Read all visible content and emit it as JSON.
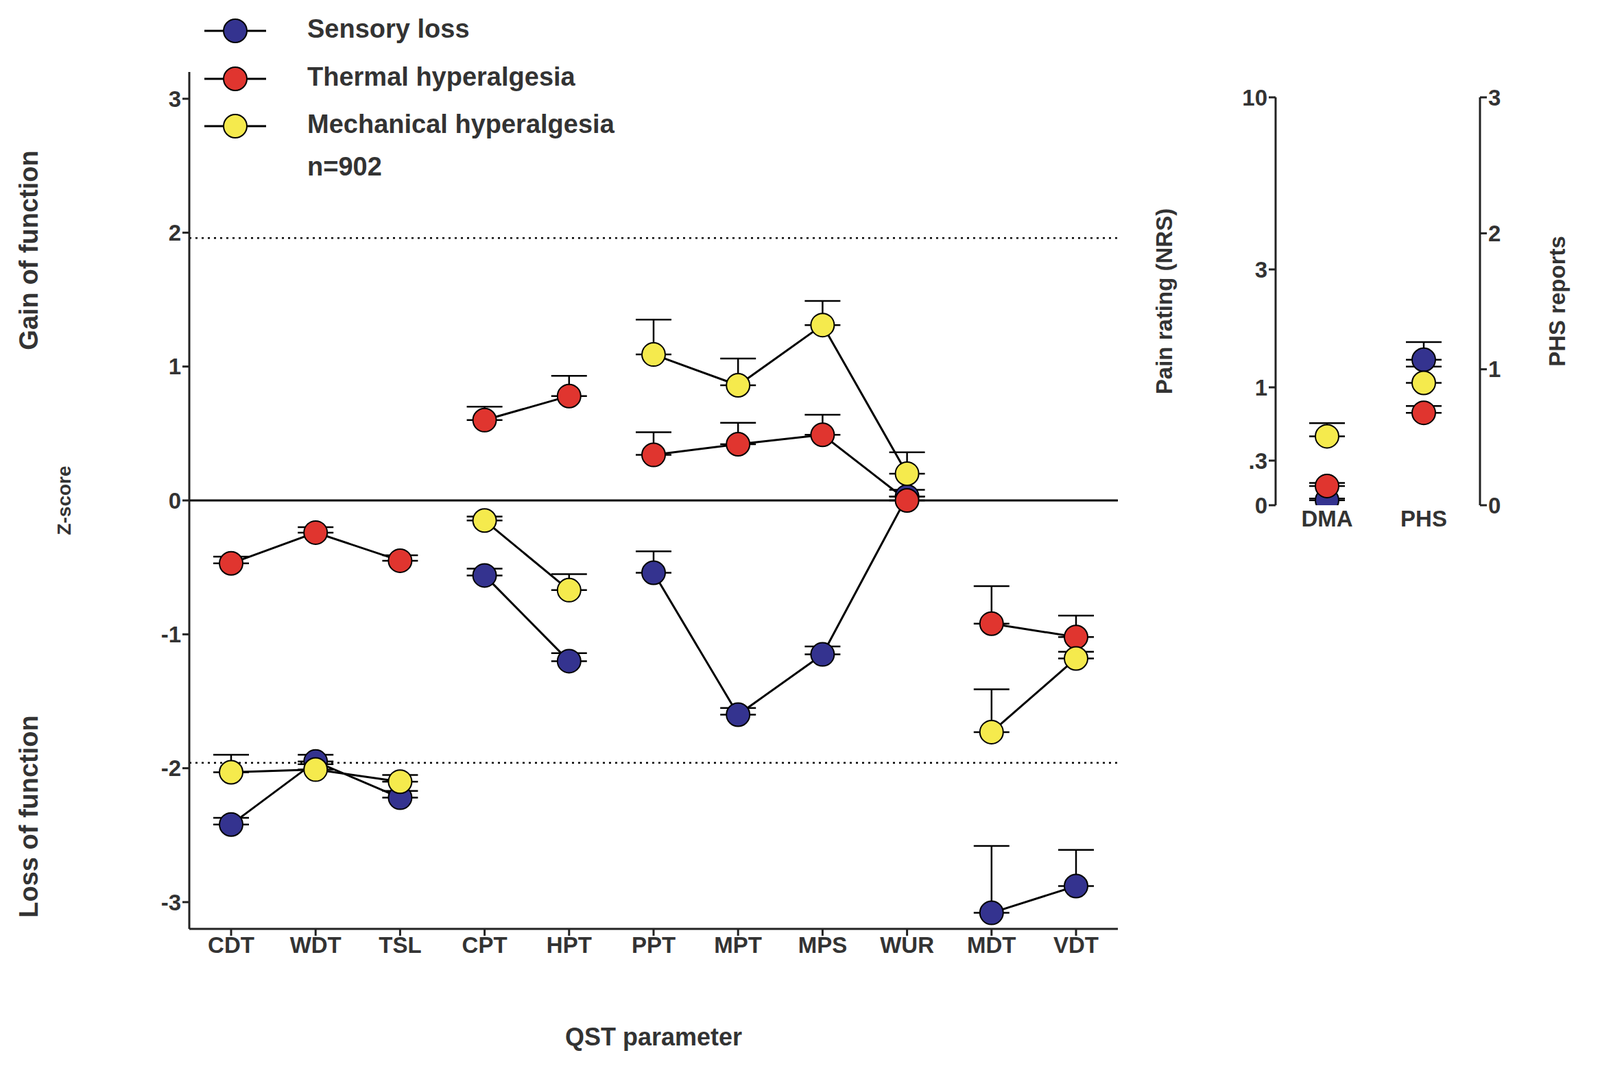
{
  "chart_data": [
    {
      "type": "line",
      "x_label": "QST parameter",
      "y_label": "Z-score",
      "categories": [
        "CDT",
        "WDT",
        "TSL",
        "CPT",
        "HPT",
        "PPT",
        "MPT",
        "MPS",
        "WUR",
        "MDT",
        "VDT"
      ],
      "category_groups": [
        [
          "CDT",
          "WDT",
          "TSL"
        ],
        [
          "CPT",
          "HPT"
        ],
        [
          "PPT",
          "MPT",
          "MPS",
          "WUR"
        ],
        [
          "MDT",
          "VDT"
        ]
      ],
      "ylim": [
        -3.2,
        3.2
      ],
      "yticks": [
        -3,
        -2,
        -1,
        0,
        1,
        2,
        3
      ],
      "reference_lines": [
        {
          "y": 1.96,
          "line_style": "dotted"
        },
        {
          "y": 0,
          "line_style": "solid"
        },
        {
          "y": -1.96,
          "line_style": "dotted"
        }
      ],
      "legend": "top-left",
      "marker": "circle",
      "annotations": [
        "Gain of function",
        "Loss of function",
        "n=902"
      ],
      "series": [
        {
          "name": "Sensory loss",
          "color": "#34338f",
          "values": [
            -2.42,
            -1.95,
            -2.22,
            -0.56,
            -1.2,
            -0.54,
            -1.6,
            -1.15,
            0.03,
            -3.08,
            -2.88
          ],
          "errors": [
            0.05,
            0.05,
            0.05,
            0.05,
            0.06,
            0.16,
            0.05,
            0.06,
            0.05,
            0.5,
            0.27
          ]
        },
        {
          "name": "Thermal hyperalgesia",
          "color": "#e0352f",
          "values": [
            -0.47,
            -0.24,
            -0.45,
            0.6,
            0.78,
            0.34,
            0.42,
            0.49,
            0.0,
            -0.92,
            -1.02
          ],
          "errors": [
            0.05,
            0.04,
            0.04,
            0.1,
            0.15,
            0.17,
            0.16,
            0.15,
            0.03,
            0.28,
            0.16
          ]
        },
        {
          "name": "Mechanical hyperalgesia",
          "color": "#f5ea4d",
          "values": [
            -2.03,
            -2.01,
            -2.1,
            -0.15,
            -0.67,
            1.09,
            0.86,
            1.31,
            0.2,
            -1.73,
            -1.18
          ],
          "errors": [
            0.13,
            0.04,
            0.05,
            0.03,
            0.12,
            0.26,
            0.2,
            0.18,
            0.16,
            0.32,
            0.05
          ]
        }
      ]
    },
    {
      "type": "scatter",
      "y_label": "Pain rating (NRS)",
      "y2_label": "PHS reports",
      "categories": [
        "DMA",
        "PHS"
      ],
      "log": "y",
      "marker": "circle",
      "ylim": [
        0,
        10
      ],
      "yticks": [
        0,
        {
          "value": 0.3,
          "label": ".3"
        },
        1,
        3,
        10
      ],
      "y2lim": [
        0,
        3
      ],
      "y2ticks": [
        0,
        1,
        2,
        3
      ],
      "series": [
        {
          "name": "Sensory loss",
          "color": "#34338f",
          "axis": "y",
          "values": [
            0.03,
            null
          ],
          "errors": [
            0.01,
            null
          ]
        },
        {
          "name": "Thermal hyperalgesia",
          "color": "#e0352f",
          "axis": "y",
          "values": [
            0.12,
            null
          ],
          "errors": [
            0.02,
            null
          ]
        },
        {
          "name": "Mechanical hyperalgesia",
          "color": "#f5ea4d",
          "axis": "y",
          "values": [
            0.5,
            null
          ],
          "errors": [
            0.12,
            null
          ]
        },
        {
          "name": "Sensory loss",
          "color": "#34338f",
          "axis": "y2",
          "values": [
            null,
            1.07
          ],
          "errors": [
            null,
            0.13
          ]
        },
        {
          "name": "Thermal hyperalgesia",
          "color": "#e0352f",
          "axis": "y2",
          "values": [
            null,
            0.68
          ],
          "errors": [
            null,
            0.05
          ]
        },
        {
          "name": "Mechanical hyperalgesia",
          "color": "#f5ea4d",
          "axis": "y2",
          "values": [
            null,
            0.9
          ],
          "errors": [
            null,
            0.12
          ]
        }
      ]
    }
  ]
}
